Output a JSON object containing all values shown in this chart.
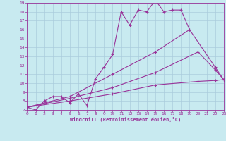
{
  "xlabel": "Windchill (Refroidissement éolien,°C)",
  "xlim": [
    0,
    23
  ],
  "ylim": [
    7,
    19
  ],
  "xticks": [
    0,
    1,
    2,
    3,
    4,
    5,
    6,
    7,
    8,
    9,
    10,
    11,
    12,
    13,
    14,
    15,
    16,
    17,
    18,
    19,
    20,
    21,
    22,
    23
  ],
  "yticks": [
    7,
    8,
    9,
    10,
    11,
    12,
    13,
    14,
    15,
    16,
    17,
    18,
    19
  ],
  "bg_color": "#c8eaf0",
  "line_color": "#993399",
  "grid_color": "#aaccdd",
  "lines": [
    {
      "x": [
        0,
        1,
        2,
        3,
        4,
        5,
        6,
        7,
        8,
        9,
        10,
        11,
        12,
        13,
        14,
        15,
        16,
        17,
        18,
        19
      ],
      "y": [
        7.3,
        7.0,
        8.0,
        8.5,
        8.5,
        7.8,
        8.8,
        7.5,
        10.5,
        11.8,
        13.2,
        18.0,
        16.5,
        18.2,
        18.0,
        19.3,
        18.0,
        18.2,
        18.2,
        16.0
      ]
    },
    {
      "x": [
        0,
        5,
        10,
        15,
        19,
        22,
        23
      ],
      "y": [
        7.3,
        8.5,
        11.0,
        13.5,
        16.0,
        11.8,
        10.4
      ]
    },
    {
      "x": [
        0,
        5,
        10,
        15,
        20,
        22,
        23
      ],
      "y": [
        7.3,
        8.3,
        9.5,
        11.2,
        13.5,
        11.5,
        10.4
      ]
    },
    {
      "x": [
        0,
        5,
        10,
        15,
        20,
        22,
        23
      ],
      "y": [
        7.3,
        8.0,
        8.8,
        9.8,
        10.2,
        10.3,
        10.4
      ]
    }
  ]
}
